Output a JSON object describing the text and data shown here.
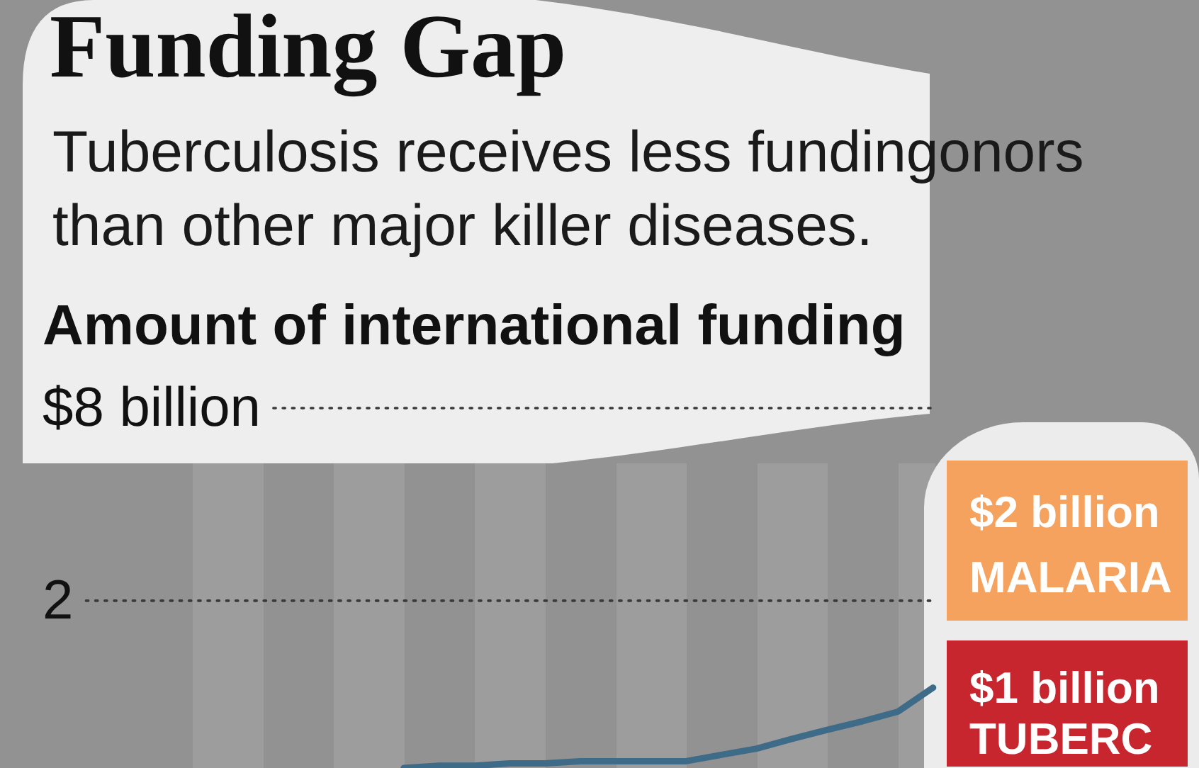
{
  "chart_data": {
    "type": "line",
    "title": "Funding Gap",
    "subtitle": "Tuberculosis receives less fundingonors than other major killer diseases.",
    "ylabel": "Amount of international funding",
    "categories": [
      null,
      null,
      null,
      null,
      null,
      null,
      null,
      null,
      null,
      null,
      null,
      null,
      null,
      null,
      null,
      null,
      null,
      null,
      null,
      null,
      null,
      null,
      null,
      null,
      null,
      null
    ],
    "series": [
      {
        "color": "#3e6b87",
        "values": [
          null,
          null,
          null,
          null,
          null,
          null,
          null,
          null,
          null,
          null,
          0.6,
          0.61,
          0.61,
          0.62,
          0.62,
          0.63,
          0.63,
          0.63,
          0.63,
          0.66,
          0.69,
          0.74,
          0.79,
          0.84,
          0.9,
          1.07
        ]
      }
    ],
    "log": true,
    "ylim": [
      0.6,
      8
    ],
    "yticks": [
      {
        "value": 8,
        "label": "$8 billion"
      },
      2
    ],
    "grid": "y",
    "annotations": [
      "$2 billion\nMALARIA",
      "$1 billion\nTUBERC"
    ]
  }
}
